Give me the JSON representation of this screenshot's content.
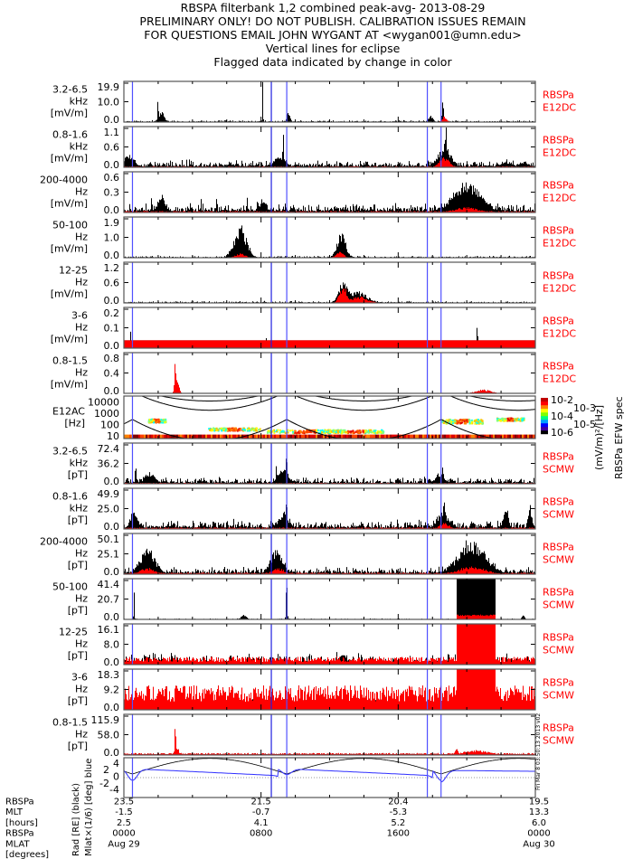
{
  "title_lines": [
    "RBSPA filterbank 1,2 combined peak-avg- 2013-08-29",
    "PRELIMINARY ONLY! DO NOT PUBLISH. CALIBRATION ISSUES REMAIN",
    "FOR QUESTIONS EMAIL JOHN WYGANT AT <wygan001@umn.edu>",
    "Vertical lines for eclipse",
    "Flagged data indicated by change in color"
  ],
  "footer_stamp": "Fri Mar  8 03:50:13 2013 v02",
  "colors": {
    "black_series": "#000000",
    "red_series": "#ff0000",
    "eclipse_line": "#5050ff",
    "mlat_line": "#3030ff"
  },
  "chart_data": {
    "type": "line",
    "x_range_hours": [
      0,
      24
    ],
    "eclipse_hours": [
      0.5,
      8.6,
      9.5,
      17.7,
      18.5
    ],
    "panels": [
      {
        "label": [
          "3.2-6.5",
          "kHz",
          "[mV/m]"
        ],
        "ylim": [
          0,
          19.9
        ],
        "yticks": [
          "0.0",
          "10.0",
          "19.9"
        ],
        "instrument": [
          "RBSPa",
          "E12DC"
        ],
        "black_noise": 0.02,
        "red_level": 0.005,
        "events": [
          [
            2.0,
            19.9,
            0.03,
            "b"
          ],
          [
            2.2,
            5,
            0.25,
            "b"
          ],
          [
            8.1,
            19.9,
            0.03,
            "b"
          ],
          [
            9.6,
            6,
            0.12,
            "b"
          ],
          [
            17.9,
            4,
            0.15,
            "b"
          ],
          [
            18.6,
            15,
            0.05,
            "b"
          ],
          [
            18.7,
            3,
            0.2,
            "r"
          ]
        ]
      },
      {
        "label": [
          "0.8-1.6",
          "kHz",
          "[mV/m]"
        ],
        "ylim": [
          0,
          1.1
        ],
        "yticks": [
          "0.0",
          "0.6",
          "1.1"
        ],
        "instrument": [
          "RBSPa",
          "E12DC"
        ],
        "black_noise": 0.08,
        "red_level": 0.02,
        "events": [
          [
            0.5,
            1.1,
            0.04,
            "b"
          ],
          [
            0.3,
            0.3,
            0.4,
            "b"
          ],
          [
            9.3,
            0.9,
            0.05,
            "b"
          ],
          [
            9.1,
            0.3,
            0.4,
            "b"
          ],
          [
            18.8,
            1.1,
            0.06,
            "b"
          ],
          [
            18.7,
            0.6,
            0.5,
            "b"
          ],
          [
            18.7,
            0.3,
            0.4,
            "r"
          ],
          [
            22.3,
            0.15,
            0.4,
            "b"
          ],
          [
            23.3,
            0.15,
            0.3,
            "b"
          ]
        ]
      },
      {
        "label": [
          "200-4000",
          "Hz",
          "[mV/m]"
        ],
        "ylim": [
          0,
          0.6
        ],
        "yticks": [
          "0.0",
          "0.3",
          "0.6"
        ],
        "instrument": [
          "RBSPa",
          "E12DC"
        ],
        "black_noise": 0.1,
        "red_level": 0.03,
        "events": [
          [
            1.6,
            0.35,
            0.03,
            "b"
          ],
          [
            2.2,
            0.25,
            0.3,
            "b"
          ],
          [
            4.5,
            0.3,
            0.03,
            "b"
          ],
          [
            5.4,
            0.35,
            0.03,
            "b"
          ],
          [
            7.2,
            0.25,
            0.03,
            "b"
          ],
          [
            7.8,
            0.3,
            0.03,
            "b"
          ],
          [
            8.1,
            0.15,
            0.3,
            "b"
          ],
          [
            20.0,
            0.45,
            1.1,
            "b"
          ],
          [
            20.0,
            0.08,
            1.0,
            "r"
          ]
        ]
      },
      {
        "label": [
          "50-100",
          "Hz",
          "[mV/m]"
        ],
        "ylim": [
          0,
          1.9
        ],
        "yticks": [
          "0.0",
          "1.0",
          "1.9"
        ],
        "instrument": [
          "RBSPa",
          "E12DC"
        ],
        "black_noise": 0.02,
        "red_level": 0.005,
        "events": [
          [
            6.8,
            1.5,
            0.5,
            "b"
          ],
          [
            6.9,
            1.8,
            0.04,
            "b"
          ],
          [
            6.8,
            0.2,
            0.4,
            "r"
          ],
          [
            12.7,
            1.2,
            0.35,
            "b"
          ],
          [
            12.6,
            0.3,
            0.3,
            "r"
          ]
        ]
      },
      {
        "label": [
          "12-25",
          "Hz",
          "[mV/m]"
        ],
        "ylim": [
          0,
          1.2
        ],
        "yticks": [
          "0.0",
          "0.6",
          "1.2"
        ],
        "instrument": [
          "RBSPa",
          "E12DC"
        ],
        "black_noise": 0.02,
        "red_level": 0.01,
        "events": [
          [
            12.8,
            0.75,
            0.35,
            "b"
          ],
          [
            13.6,
            0.35,
            0.8,
            "b"
          ],
          [
            12.8,
            0.55,
            0.3,
            "r"
          ],
          [
            13.7,
            0.2,
            0.7,
            "r"
          ]
        ]
      },
      {
        "label": [
          "3-6",
          "Hz",
          "[mV/m]"
        ],
        "ylim": [
          0,
          0.2
        ],
        "yticks": [
          "0.0",
          "0.1",
          "0.2"
        ],
        "instrument": [
          "RBSPa",
          "E12DC"
        ],
        "black_noise": 0.0,
        "red_level": 0.19,
        "red_flat": true,
        "events": [
          [
            0.4,
            0.09,
            0.02,
            "b"
          ],
          [
            3.0,
            0.08,
            0.02,
            "b"
          ],
          [
            6.4,
            0.07,
            0.02,
            "b"
          ],
          [
            8.3,
            0.08,
            0.02,
            "b"
          ],
          [
            11.8,
            0.07,
            0.02,
            "b"
          ],
          [
            12.6,
            0.07,
            0.02,
            "b"
          ],
          [
            17.1,
            0.08,
            0.02,
            "b"
          ],
          [
            20.6,
            0.1,
            0.08,
            "b"
          ],
          [
            20.9,
            0.08,
            0.02,
            "b"
          ]
        ]
      },
      {
        "label": [
          "0.8-1.5",
          "Hz",
          "[mV/m]"
        ],
        "ylim": [
          0,
          0.8
        ],
        "yticks": [
          "0.0",
          "0.4",
          "0.8"
        ],
        "instrument": [
          "RBSPa",
          "E12DC"
        ],
        "black_noise": 0.0,
        "red_level": 0.01,
        "events": [
          [
            3.0,
            0.8,
            0.06,
            "r"
          ],
          [
            3.1,
            0.3,
            0.15,
            "r"
          ],
          [
            21.0,
            0.08,
            0.6,
            "r"
          ]
        ]
      },
      {
        "label": [
          "E12AC",
          "[Hz]"
        ],
        "type": "spectrogram",
        "ylim_log10": [
          1,
          4
        ],
        "yticks": [
          "10000",
          "1000",
          "100",
          "10"
        ],
        "colorbar": {
          "labels": [
            "10-2",
            "10-3",
            "10-4",
            "10-5",
            "10-6"
          ],
          "title": "(mV/m)²/[Hz]",
          "subtitle": "RBSPa EFW spec"
        }
      },
      {
        "label": [
          "3.2-6.5",
          "kHz",
          "[pT]"
        ],
        "ylim": [
          0,
          72.4
        ],
        "yticks": [
          "0.0",
          "36.2",
          "72.4"
        ],
        "instrument": [
          "RBSPa",
          "SCMW"
        ],
        "black_noise": 0.07,
        "red_level": 0.02,
        "events": [
          [
            0.7,
            40,
            0.05,
            "b"
          ],
          [
            1.5,
            20,
            0.4,
            "b"
          ],
          [
            8.9,
            40,
            0.05,
            "b"
          ],
          [
            9.5,
            72,
            0.05,
            "b"
          ],
          [
            9.3,
            25,
            0.4,
            "b"
          ],
          [
            18.6,
            40,
            0.05,
            "b"
          ],
          [
            18.4,
            15,
            0.4,
            "b"
          ]
        ]
      },
      {
        "label": [
          "0.8-1.6",
          "kHz",
          "[pT]"
        ],
        "ylim": [
          0,
          49.9
        ],
        "yticks": [
          "0.0",
          "25.0",
          "49.9"
        ],
        "instrument": [
          "RBSPa",
          "SCMW"
        ],
        "black_noise": 0.1,
        "red_level": 0.03,
        "events": [
          [
            0.5,
            40,
            0.05,
            "b"
          ],
          [
            0.6,
            20,
            0.3,
            "b"
          ],
          [
            9.5,
            49,
            0.05,
            "b"
          ],
          [
            9.3,
            20,
            0.4,
            "b"
          ],
          [
            18.7,
            45,
            0.05,
            "b"
          ],
          [
            18.6,
            22,
            0.4,
            "b"
          ],
          [
            18.7,
            8,
            0.4,
            "r"
          ],
          [
            22.3,
            25,
            0.2,
            "b"
          ],
          [
            23.7,
            28,
            0.15,
            "b"
          ]
        ]
      },
      {
        "label": [
          "200-4000",
          "Hz",
          "[pT]"
        ],
        "ylim": [
          0,
          50.1
        ],
        "yticks": [
          "0.0",
          "25.1",
          "50.1"
        ],
        "instrument": [
          "RBSPa",
          "SCMW"
        ],
        "black_noise": 0.08,
        "red_level": 0.03,
        "events": [
          [
            1.4,
            33,
            0.6,
            "b"
          ],
          [
            1.4,
            8,
            0.6,
            "r"
          ],
          [
            8.9,
            30,
            0.5,
            "b"
          ],
          [
            9.0,
            8,
            0.5,
            "r"
          ],
          [
            20.3,
            42,
            1.1,
            "b"
          ],
          [
            20.3,
            10,
            1.1,
            "r"
          ]
        ]
      },
      {
        "label": [
          "50-100",
          "Hz",
          "[pT]"
        ],
        "ylim": [
          0,
          41.4
        ],
        "yticks": [
          "0.0",
          "20.7",
          "41.4"
        ],
        "instrument": [
          "RBSPa",
          "SCMW"
        ],
        "black_noise": 0.01,
        "red_level": 0.01,
        "events": [
          [
            0.6,
            41,
            0.03,
            "b"
          ],
          [
            7.0,
            6,
            0.2,
            "b"
          ],
          [
            9.5,
            41,
            0.05,
            "b"
          ],
          [
            20.55,
            41.4,
            1.15,
            "block"
          ],
          [
            20.55,
            5,
            1.15,
            "rblock"
          ],
          [
            23.3,
            6,
            0.1,
            "b"
          ]
        ]
      },
      {
        "label": [
          "12-25",
          "Hz",
          "[pT]"
        ],
        "ylim": [
          0,
          16.1
        ],
        "yticks": [
          "0.0",
          "8.0",
          "16.1"
        ],
        "instrument": [
          "RBSPa",
          "SCMW"
        ],
        "black_noise": 0.12,
        "red_level": 0.16,
        "events": [
          [
            12.8,
            4,
            0.3,
            "b"
          ],
          [
            12.4,
            8,
            0.03,
            "b"
          ],
          [
            20.55,
            16.1,
            1.15,
            "rblock"
          ]
        ]
      },
      {
        "label": [
          "3-6",
          "Hz",
          "[pT]"
        ],
        "ylim": [
          0,
          18.3
        ],
        "yticks": [
          "0.0",
          "9.2",
          "18.3"
        ],
        "instrument": [
          "RBSPa",
          "SCMW"
        ],
        "black_noise": 0.12,
        "red_level": 0.5,
        "events": [
          [
            20.55,
            18.3,
            1.15,
            "rblock"
          ]
        ]
      },
      {
        "label": [
          "0.8-1.5",
          "Hz",
          "[pT]"
        ],
        "ylim": [
          0,
          115.9
        ],
        "yticks": [
          "0.0",
          "58.0",
          "115.9"
        ],
        "instrument": [
          "RBSPa",
          "SCMW"
        ],
        "black_noise": 0.0,
        "red_level": 0.04,
        "events": [
          [
            3.0,
            115,
            0.05,
            "r"
          ],
          [
            3.1,
            30,
            0.12,
            "r"
          ],
          [
            19.4,
            22,
            0.12,
            "r"
          ],
          [
            20.5,
            14,
            1.1,
            "r"
          ]
        ]
      },
      {
        "label": [
          "Rad [RE] (black)",
          "Mlat×(1/6) [deg] blue"
        ],
        "type": "position",
        "ylim": [
          -6,
          6
        ],
        "yticks": [
          "4",
          "2",
          "0",
          "-2",
          "-4"
        ]
      }
    ],
    "bottom_axis": {
      "row_labels": [
        "RBSPa",
        "MLT",
        "[hours]",
        "RBSPa",
        "MLAT",
        "[degrees]"
      ],
      "columns": [
        {
          "hour": 0,
          "values": [
            "23.5",
            "-1.5",
            "2.5",
            "0000",
            "Aug 29"
          ]
        },
        {
          "hour": 8,
          "values": [
            "21.5",
            "-0.7",
            "4.1",
            "0800",
            ""
          ]
        },
        {
          "hour": 16,
          "values": [
            "20.4",
            "-5.3",
            "5.2",
            "1600",
            ""
          ]
        },
        {
          "hour": 24,
          "values": [
            "19.5",
            "13.3",
            "6.0",
            "0000",
            "Aug 30"
          ]
        }
      ]
    }
  }
}
